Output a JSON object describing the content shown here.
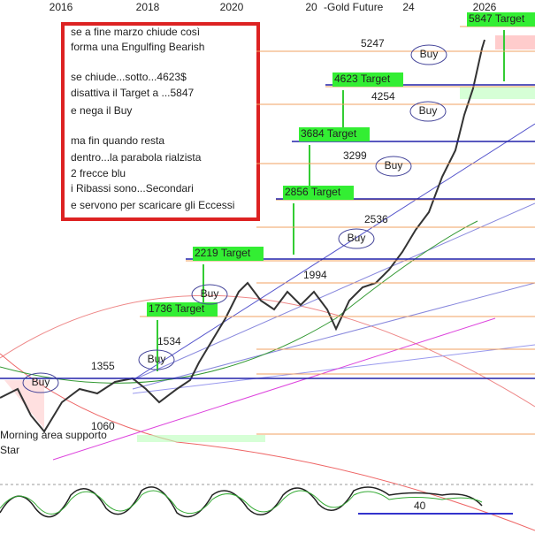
{
  "header": {
    "title": "-Gold Future"
  },
  "years": [
    "2016",
    "2018",
    "2020",
    "20",
    "24",
    "2026"
  ],
  "levels": [
    {
      "label": "5847 Target",
      "target": true
    },
    {
      "label": "5247",
      "target": false
    },
    {
      "label": "4623 Target",
      "target": true
    },
    {
      "label": "4254",
      "target": false
    },
    {
      "label": "3684 Target",
      "target": true
    },
    {
      "label": "3299",
      "target": false
    },
    {
      "label": "2856 Target",
      "target": true
    },
    {
      "label": "2536",
      "target": false
    },
    {
      "label": "2219 Target",
      "target": true
    },
    {
      "label": "1994",
      "target": false
    },
    {
      "label": "1736 Target",
      "target": true
    },
    {
      "label": "1534",
      "target": false
    },
    {
      "label": "1355",
      "target": false
    },
    {
      "label": "1060",
      "target": false
    }
  ],
  "oscillator_label": "40",
  "note": {
    "paragraphs": [
      [
        "se a fine marzo chiude così",
        "forma una Engulfing Bearish"
      ],
      [
        "se chiude...sotto...4623$",
        "disattiva il Target a ...5847",
        "e nega il Buy"
      ],
      [
        "ma fin quando resta",
        "dentro...la parabola rialzista",
        "2 frecce blu",
        "i Ribassi sono...Secondari",
        "e servono per scaricare gli Eccessi"
      ]
    ]
  },
  "buy_labels": [
    "Buy",
    "Buy",
    "Buy",
    "Buy",
    "Buy",
    "Buy",
    "Buy"
  ],
  "footer": {
    "label_1": "Morning area supporto",
    "label_2": "Star"
  }
}
